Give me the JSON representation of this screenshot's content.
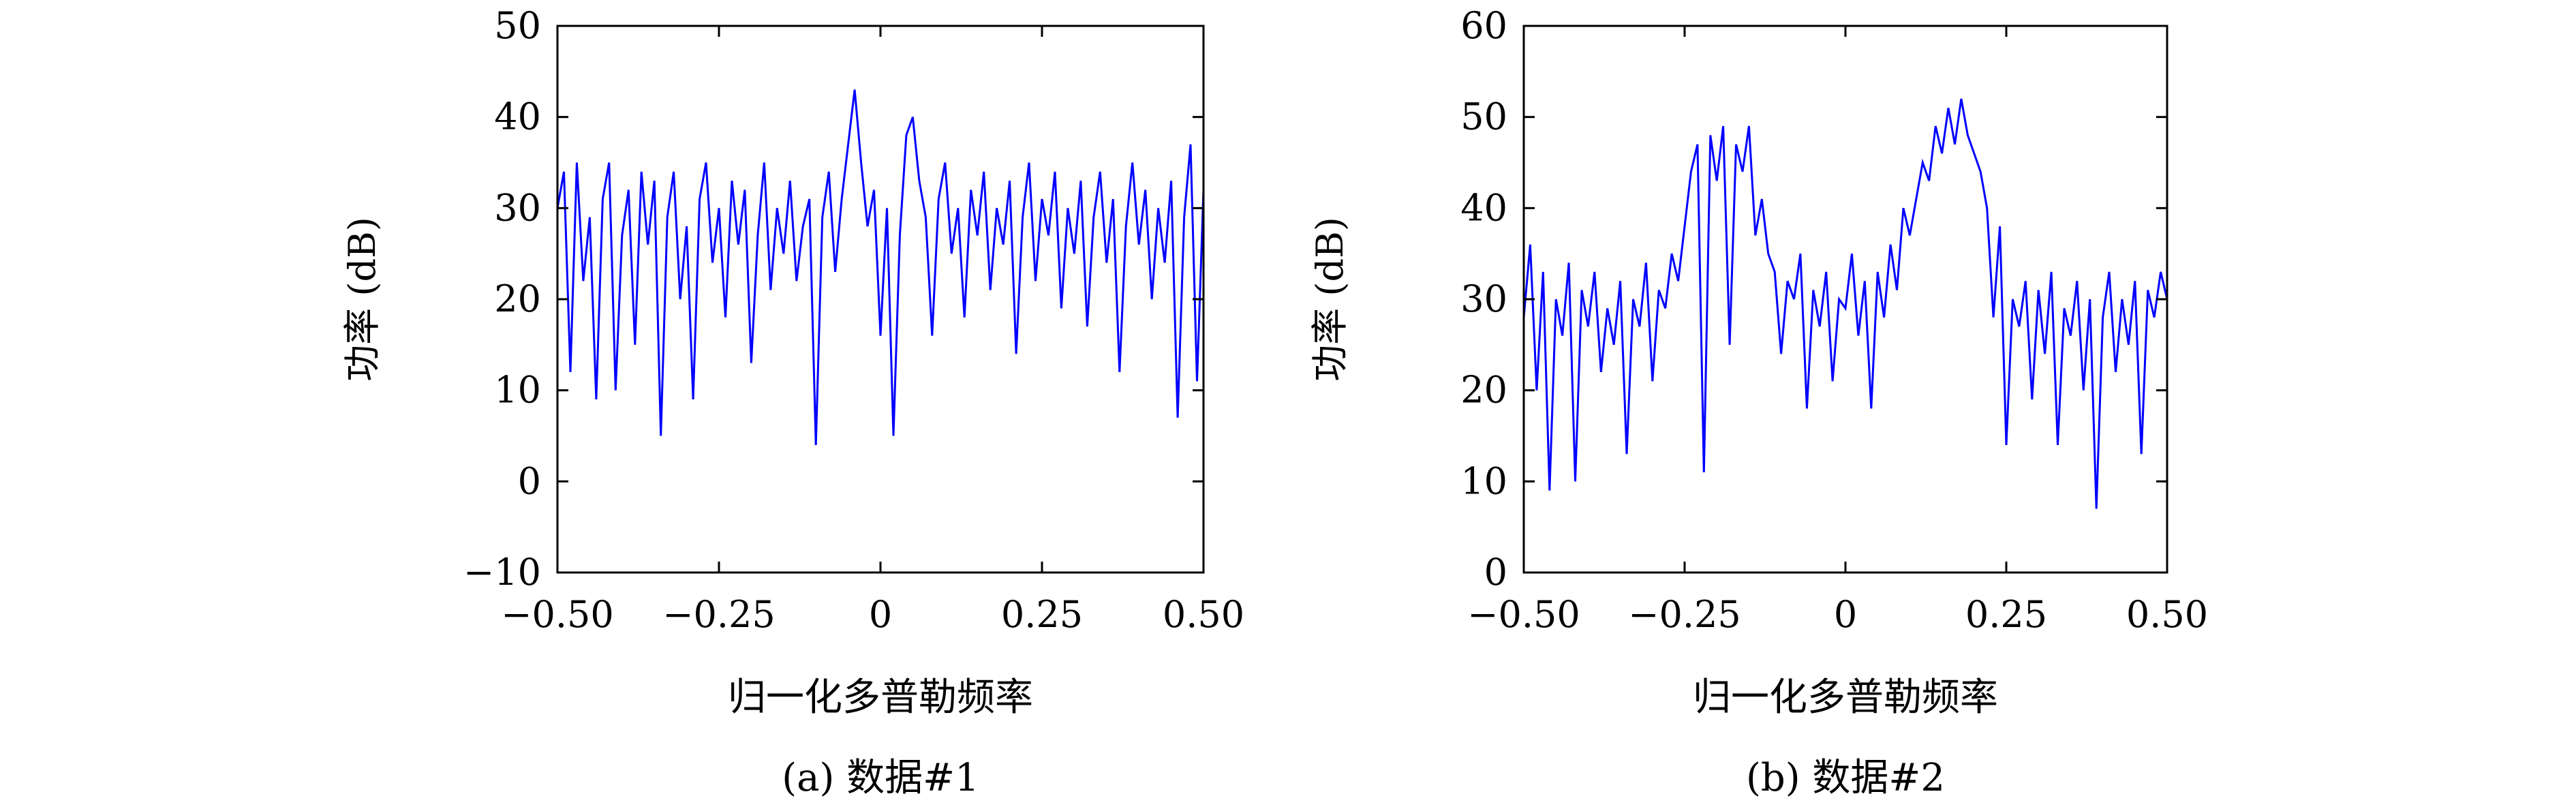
{
  "charts": [
    {
      "caption": "(a) 数据#1",
      "xlabel": "归一化多普勒频率",
      "ylabel": "功率 (dB)",
      "xlim": [
        -0.5,
        0.5
      ],
      "ylim": [
        -10,
        50
      ],
      "xticks": [
        {
          "value": -0.5,
          "label": "−0.50"
        },
        {
          "value": -0.25,
          "label": "−0.25"
        },
        {
          "value": 0,
          "label": "0"
        },
        {
          "value": 0.25,
          "label": "0.25"
        },
        {
          "value": 0.5,
          "label": "0.50"
        }
      ],
      "yticks": [
        {
          "value": -10,
          "label": "−10"
        },
        {
          "value": 0,
          "label": "0"
        },
        {
          "value": 10,
          "label": "10"
        },
        {
          "value": 20,
          "label": "20"
        },
        {
          "value": 30,
          "label": "30"
        },
        {
          "value": 40,
          "label": "40"
        },
        {
          "value": 50,
          "label": "50"
        }
      ]
    },
    {
      "caption": "(b) 数据#2",
      "xlabel": "归一化多普勒频率",
      "ylabel": "功率 (dB)",
      "xlim": [
        -0.5,
        0.5
      ],
      "ylim": [
        0,
        60
      ],
      "xticks": [
        {
          "value": -0.5,
          "label": "−0.50"
        },
        {
          "value": -0.25,
          "label": "−0.25"
        },
        {
          "value": 0,
          "label": "0"
        },
        {
          "value": 0.25,
          "label": "0.25"
        },
        {
          "value": 0.5,
          "label": "0.50"
        }
      ],
      "yticks": [
        {
          "value": 0,
          "label": "0"
        },
        {
          "value": 10,
          "label": "10"
        },
        {
          "value": 20,
          "label": "20"
        },
        {
          "value": 30,
          "label": "30"
        },
        {
          "value": 40,
          "label": "40"
        },
        {
          "value": 50,
          "label": "50"
        },
        {
          "value": 60,
          "label": "60"
        }
      ]
    }
  ],
  "chart_data": [
    {
      "type": "line",
      "line_color": "#0000ff",
      "grid": false,
      "xlim": [
        -0.5,
        0.5
      ],
      "ylim": [
        -10,
        50
      ],
      "series": [
        {
          "x": [
            -0.5,
            -0.49,
            -0.48,
            -0.47,
            -0.46,
            -0.45,
            -0.44,
            -0.43,
            -0.42,
            -0.41,
            -0.4,
            -0.39,
            -0.38,
            -0.37,
            -0.36,
            -0.35,
            -0.34,
            -0.33,
            -0.32,
            -0.31,
            -0.3,
            -0.29,
            -0.28,
            -0.27,
            -0.26,
            -0.25,
            -0.24,
            -0.23,
            -0.22,
            -0.21,
            -0.2,
            -0.19,
            -0.18,
            -0.17,
            -0.16,
            -0.15,
            -0.14,
            -0.13,
            -0.12,
            -0.11,
            -0.1,
            -0.09,
            -0.08,
            -0.07,
            -0.06,
            -0.05,
            -0.04,
            -0.03,
            -0.02,
            -0.01,
            0.0,
            0.01,
            0.02,
            0.03,
            0.04,
            0.05,
            0.06,
            0.07,
            0.08,
            0.09,
            0.1,
            0.11,
            0.12,
            0.13,
            0.14,
            0.15,
            0.16,
            0.17,
            0.18,
            0.19,
            0.2,
            0.21,
            0.22,
            0.23,
            0.24,
            0.25,
            0.26,
            0.27,
            0.28,
            0.29,
            0.3,
            0.31,
            0.32,
            0.33,
            0.34,
            0.35,
            0.36,
            0.37,
            0.38,
            0.39,
            0.4,
            0.41,
            0.42,
            0.43,
            0.44,
            0.45,
            0.46,
            0.47,
            0.48,
            0.49,
            0.5
          ],
          "y": [
            30,
            34,
            12,
            35,
            22,
            29,
            9,
            31,
            35,
            10,
            27,
            32,
            15,
            34,
            26,
            33,
            5,
            29,
            34,
            20,
            28,
            9,
            31,
            35,
            24,
            30,
            18,
            33,
            26,
            32,
            13,
            27,
            35,
            21,
            30,
            25,
            33,
            22,
            28,
            31,
            4,
            29,
            34,
            23,
            31,
            37,
            43,
            35,
            28,
            32,
            16,
            30,
            5,
            27,
            38,
            40,
            33,
            29,
            16,
            31,
            35,
            25,
            30,
            18,
            32,
            27,
            34,
            21,
            30,
            26,
            33,
            14,
            29,
            35,
            22,
            31,
            27,
            34,
            19,
            30,
            25,
            33,
            17,
            29,
            34,
            24,
            31,
            12,
            28,
            35,
            26,
            32,
            20,
            30,
            24,
            33,
            7,
            29,
            37,
            11,
            32
          ]
        }
      ]
    },
    {
      "type": "line",
      "line_color": "#0000ff",
      "grid": false,
      "xlim": [
        -0.5,
        0.5
      ],
      "ylim": [
        0,
        60
      ],
      "series": [
        {
          "x": [
            -0.5,
            -0.49,
            -0.48,
            -0.47,
            -0.46,
            -0.45,
            -0.44,
            -0.43,
            -0.42,
            -0.41,
            -0.4,
            -0.39,
            -0.38,
            -0.37,
            -0.36,
            -0.35,
            -0.34,
            -0.33,
            -0.32,
            -0.31,
            -0.3,
            -0.29,
            -0.28,
            -0.27,
            -0.26,
            -0.25,
            -0.24,
            -0.23,
            -0.22,
            -0.21,
            -0.2,
            -0.19,
            -0.18,
            -0.17,
            -0.16,
            -0.15,
            -0.14,
            -0.13,
            -0.12,
            -0.11,
            -0.1,
            -0.09,
            -0.08,
            -0.07,
            -0.06,
            -0.05,
            -0.04,
            -0.03,
            -0.02,
            -0.01,
            0.0,
            0.01,
            0.02,
            0.03,
            0.04,
            0.05,
            0.06,
            0.07,
            0.08,
            0.09,
            0.1,
            0.11,
            0.12,
            0.13,
            0.14,
            0.15,
            0.16,
            0.17,
            0.18,
            0.19,
            0.2,
            0.21,
            0.22,
            0.23,
            0.24,
            0.25,
            0.26,
            0.27,
            0.28,
            0.29,
            0.3,
            0.31,
            0.32,
            0.33,
            0.34,
            0.35,
            0.36,
            0.37,
            0.38,
            0.39,
            0.4,
            0.41,
            0.42,
            0.43,
            0.44,
            0.45,
            0.46,
            0.47,
            0.48,
            0.49,
            0.5
          ],
          "y": [
            28,
            36,
            20,
            33,
            9,
            30,
            26,
            34,
            10,
            31,
            27,
            33,
            22,
            29,
            25,
            32,
            13,
            30,
            27,
            34,
            21,
            31,
            29,
            35,
            32,
            38,
            44,
            47,
            11,
            48,
            43,
            49,
            25,
            47,
            44,
            49,
            37,
            41,
            35,
            33,
            24,
            32,
            30,
            35,
            18,
            31,
            27,
            33,
            21,
            30,
            29,
            35,
            26,
            32,
            18,
            33,
            28,
            36,
            31,
            40,
            37,
            41,
            45,
            43,
            49,
            46,
            51,
            47,
            52,
            48,
            46,
            44,
            40,
            28,
            38,
            14,
            30,
            27,
            32,
            19,
            31,
            24,
            33,
            14,
            29,
            26,
            32,
            20,
            30,
            7,
            28,
            33,
            22,
            30,
            25,
            32,
            13,
            31,
            28,
            33,
            30
          ]
        }
      ]
    }
  ]
}
